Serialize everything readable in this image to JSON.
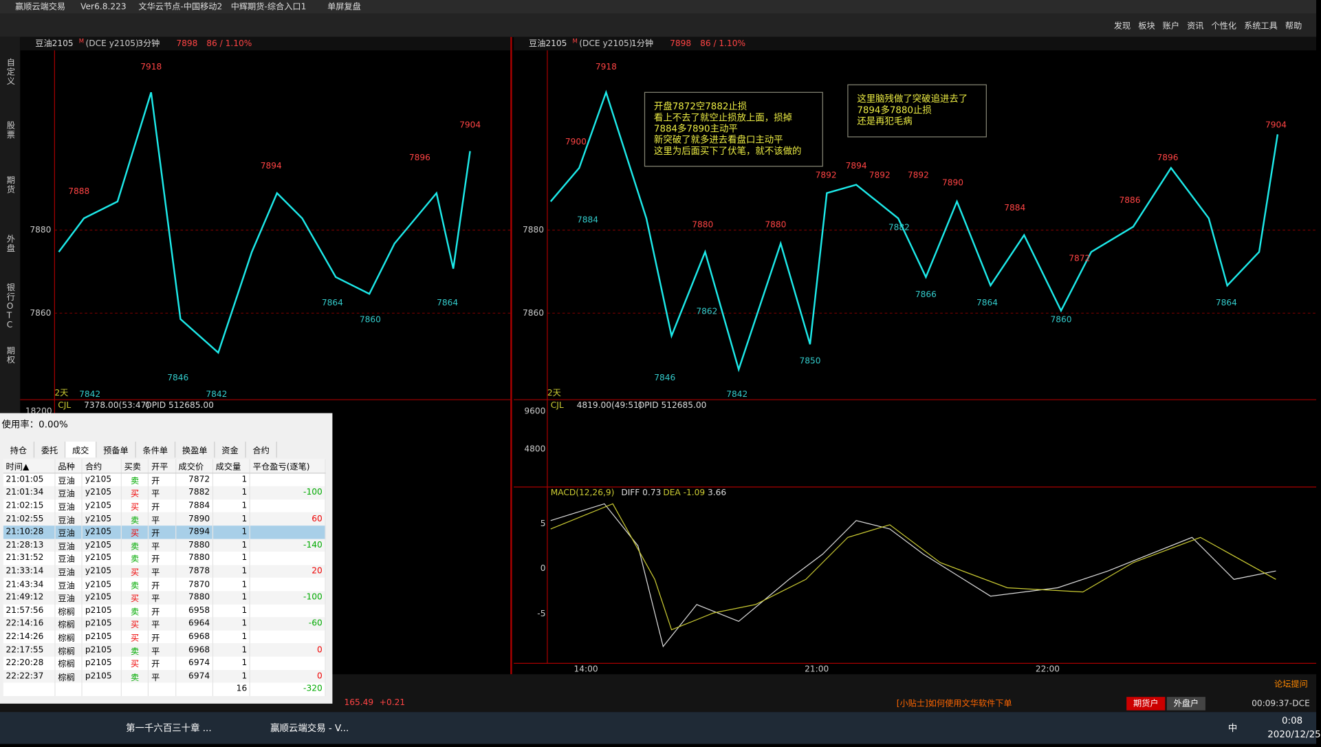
{
  "window": {
    "title": "赢顺云端交易",
    "version": "Ver6.8.223",
    "server": "文华云节点-中国移动2",
    "broker": "中辉期货-综合入口1",
    "mode": "单屏复盘"
  },
  "menu": [
    "发现",
    "板块",
    "账户",
    "资讯",
    "个性化",
    "系统工具",
    "帮助"
  ],
  "sidebar": [
    "自定义",
    "股票",
    "期货",
    "外盘",
    "银行OTC",
    "期权"
  ],
  "left_chart": {
    "symbol": "豆油2105",
    "sup": "M",
    "code": "(DCE y2105)",
    "period": "3分钟",
    "price": 7898,
    "change": "86 / 1.10%",
    "yticks": [
      7880,
      7860
    ],
    "days": "2天",
    "labels": [
      {
        "text": 7918,
        "color": "#ff4444"
      },
      {
        "text": 7888,
        "color": "#ff4444"
      },
      {
        "text": 7894,
        "color": "#ff4444"
      },
      {
        "text": 7896,
        "color": "#ff4444"
      },
      {
        "text": 7904,
        "color": "#ff4444"
      },
      {
        "text": 7846,
        "color": "#3cc"
      },
      {
        "text": 7842,
        "color": "#3cc"
      },
      {
        "text": 7842,
        "color": "#3cc"
      },
      {
        "text": 7864,
        "color": "#3cc"
      },
      {
        "text": 7860,
        "color": "#3cc"
      },
      {
        "text": 7864,
        "color": "#3cc"
      }
    ],
    "vol_name": "CJL",
    "vol": "7378.00(53:47)",
    "opid": "OPID 512685.00",
    "vol_tick": 18200
  },
  "right_chart": {
    "symbol": "豆油2105",
    "sup": "M",
    "code": "(DCE y2105)",
    "period": "1分钟",
    "price": 7898,
    "change": "86 / 1.10%",
    "yticks": [
      7880,
      7860
    ],
    "days": "2天",
    "labels": [
      {
        "text": 7918,
        "color": "#ff4444"
      },
      {
        "text": 7900,
        "color": "#ff4444"
      },
      {
        "text": 7884,
        "color": "#3cc"
      },
      {
        "text": 7880,
        "color": "#ff4444"
      },
      {
        "text": 7862,
        "color": "#3cc"
      },
      {
        "text": 7846,
        "color": "#3cc"
      },
      {
        "text": 7842,
        "color": "#3cc"
      },
      {
        "text": 7880,
        "color": "#ff4444"
      },
      {
        "text": 7850,
        "color": "#3cc"
      },
      {
        "text": 7892,
        "color": "#ff4444"
      },
      {
        "text": 7894,
        "color": "#ff4444"
      },
      {
        "text": 7892,
        "color": "#ff4444"
      },
      {
        "text": 7882,
        "color": "#3cc"
      },
      {
        "text": 7892,
        "color": "#ff4444"
      },
      {
        "text": 7890,
        "color": "#ff4444"
      },
      {
        "text": 7866,
        "color": "#3cc"
      },
      {
        "text": 7884,
        "color": "#ff4444"
      },
      {
        "text": 7864,
        "color": "#3cc"
      },
      {
        "text": 7872,
        "color": "#ff4444"
      },
      {
        "text": 7860,
        "color": "#3cc"
      },
      {
        "text": 7886,
        "color": "#ff4444"
      },
      {
        "text": 7896,
        "color": "#ff4444"
      },
      {
        "text": 7864,
        "color": "#3cc"
      },
      {
        "text": 7904,
        "color": "#ff4444"
      }
    ],
    "notes": [
      [
        "开盘7872空7882止损",
        "看上不去了就空止损放上面，损掉",
        "7884多7890主动平",
        "新突破了就多进去看盘口主动平",
        "这里为后面买下了伏笔，就不该做的"
      ],
      [
        "这里脑残做了突破追进去了",
        "7894多7880止损",
        "还是再犯毛病"
      ]
    ],
    "vol_name": "CJL",
    "vol": "4819.00(49:51)",
    "opid": "OPID 512685.00",
    "vol_ticks": [
      9600,
      4800
    ],
    "macd": "MACD(12,26,9)",
    "diff": "DIFF 0.73",
    "dea": "DEA -1.09",
    "macd_val": 3.66,
    "macd_ticks": [
      5,
      0,
      -5
    ],
    "times": [
      "14:00",
      "21:00",
      "22:00"
    ]
  },
  "panel": {
    "usage": "使用率：0.00%",
    "tabs": [
      "持仓",
      "委托",
      "成交",
      "预备单",
      "条件单",
      "换盈单",
      "资金",
      "合约"
    ],
    "headers": [
      "时间▲",
      "品种",
      "合约",
      "买卖",
      "开平",
      "成交价",
      "成交量",
      "平仓盈亏(逐笔)"
    ],
    "rows": [
      [
        "21:01:05",
        "豆油",
        "y2105",
        "卖",
        "开",
        7872,
        1,
        null
      ],
      [
        "21:01:34",
        "豆油",
        "y2105",
        "买",
        "平",
        7882,
        1,
        -100
      ],
      [
        "21:02:15",
        "豆油",
        "y2105",
        "买",
        "开",
        7884,
        1,
        null
      ],
      [
        "21:02:55",
        "豆油",
        "y2105",
        "卖",
        "平",
        7890,
        1,
        60
      ],
      [
        "21:10:28",
        "豆油",
        "y2105",
        "买",
        "开",
        7894,
        1,
        null
      ],
      [
        "21:28:13",
        "豆油",
        "y2105",
        "卖",
        "平",
        7880,
        1,
        -140
      ],
      [
        "21:31:52",
        "豆油",
        "y2105",
        "卖",
        "开",
        7880,
        1,
        null
      ],
      [
        "21:33:14",
        "豆油",
        "y2105",
        "买",
        "平",
        7878,
        1,
        20
      ],
      [
        "21:43:34",
        "豆油",
        "y2105",
        "卖",
        "开",
        7870,
        1,
        null
      ],
      [
        "21:49:12",
        "豆油",
        "y2105",
        "买",
        "平",
        7880,
        1,
        -100
      ],
      [
        "21:57:56",
        "棕榈",
        "p2105",
        "卖",
        "开",
        6958,
        1,
        null
      ],
      [
        "22:14:16",
        "棕榈",
        "p2105",
        "买",
        "平",
        6964,
        1,
        -60
      ],
      [
        "22:14:26",
        "棕榈",
        "p2105",
        "买",
        "开",
        6968,
        1,
        null
      ],
      [
        "22:17:55",
        "棕榈",
        "p2105",
        "卖",
        "平",
        6968,
        1,
        0
      ],
      [
        "22:20:28",
        "棕榈",
        "p2105",
        "买",
        "开",
        6974,
        1,
        null
      ],
      [
        "22:22:37",
        "棕榈",
        "p2105",
        "卖",
        "平",
        6974,
        1,
        0
      ]
    ],
    "total_qty": 16,
    "total_pnl": -320
  },
  "status": {
    "price": 165.49,
    "delta": "+0.21",
    "tip": "[小贴士]如何使用文华软件下单",
    "btn1": "期货户",
    "btn2": "外盘户",
    "clock": "00:09:37-DCE",
    "forum": "论坛提问"
  },
  "taskbar": {
    "items": [
      "第一千六百三十章 ...",
      "赢顺云端交易 - V..."
    ],
    "ime": "中",
    "time": "0:08",
    "date": "2020/12/25"
  }
}
